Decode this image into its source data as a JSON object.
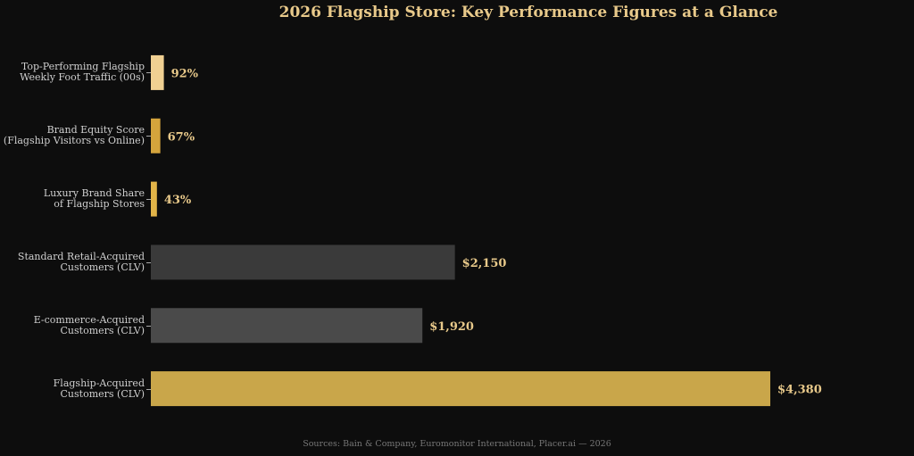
{
  "chart_data": {
    "type": "barh",
    "title": "2026 Flagship Store: Key Performance Figures at a Glance",
    "categories": [
      "Top-Performing Flagship\nWeekly Foot Traffic (00s)",
      "Brand Equity Score\n(Flagship Visitors vs Online)",
      "Luxury Brand Share\nof Flagship Stores",
      "Standard Retail-Acquired\nCustomers (CLV)",
      "E-commerce-Acquired\nCustomers (CLV)",
      "Flagship-Acquired\nCustomers (CLV)"
    ],
    "values": [
      92,
      67,
      43,
      2150,
      1920,
      4380
    ],
    "value_labels": [
      "92%",
      "67%",
      "43%",
      "$2,150",
      "$1,920",
      "$4,380"
    ],
    "colors": [
      "#f0d092",
      "#d4a43c",
      "#e2b448",
      "#3a3a3a",
      "#4a4a4a",
      "#c9a64a"
    ],
    "source": "Sources: Bain & Company, Euromonitor International, Placer.ai — 2026"
  }
}
